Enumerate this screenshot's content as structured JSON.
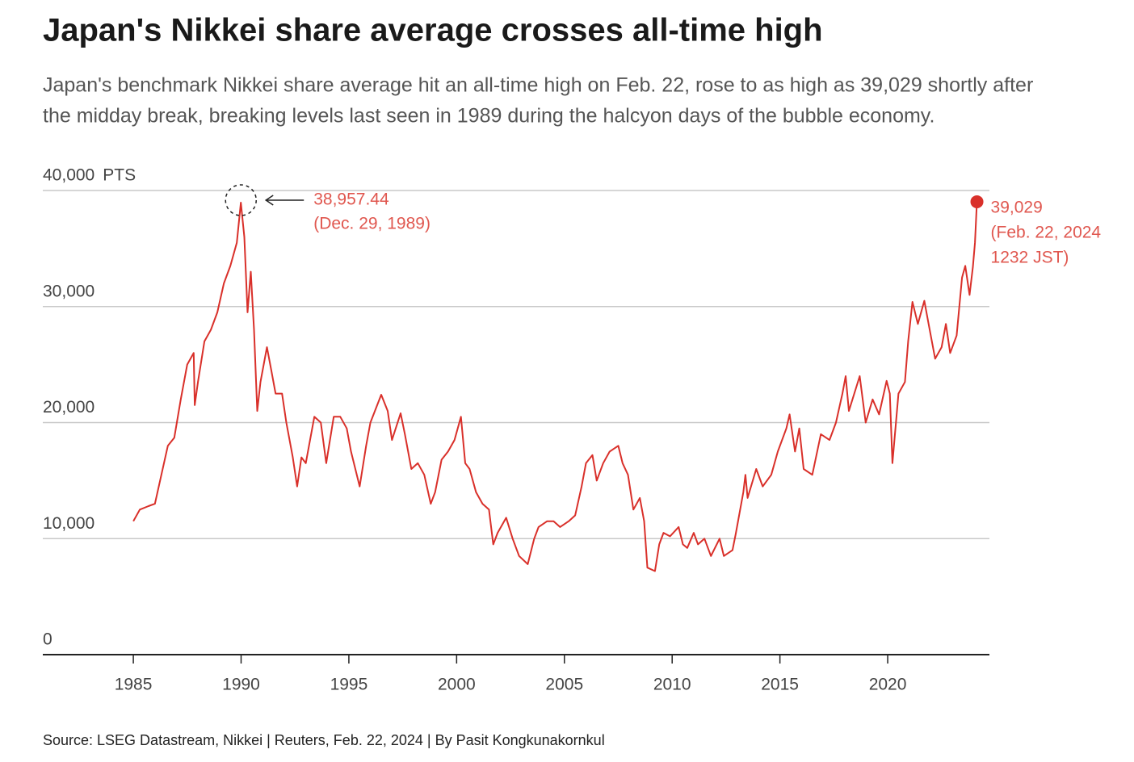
{
  "chart_data": {
    "type": "line",
    "title": "Japan's Nikkei share average crosses all-time high",
    "subtitle": [
      "Japan's benchmark Nikkei share average hit an all-time high on Feb. 22, rose to as high as 39,029 shortly after",
      "the midday break, breaking levels last seen in 1989 during the halcyon days of the bubble economy."
    ],
    "y_unit": "PTS",
    "source": "Source: LSEG Datastream, Nikkei | Reuters, Feb. 22, 2024 | By Pasit Kongkunakornkul",
    "xlim": [
      1980.8,
      2024.72
    ],
    "ylim": [
      0,
      40000
    ],
    "xticks": [
      1985,
      1990,
      1995,
      2000,
      2005,
      2010,
      2015,
      2020
    ],
    "yticks": [
      0,
      {
        "value": 10000,
        "label": "10,000"
      },
      {
        "value": 20000,
        "label": "20,000"
      },
      {
        "value": 30000,
        "label": "30,000"
      },
      {
        "value": 40000,
        "label": "40,000"
      }
    ],
    "grid": true,
    "annotations": [
      {
        "lines": [
          "38,957.44",
          "(Dec. 29, 1989)"
        ]
      },
      {
        "lines": [
          "39,029",
          "(Feb. 22, 2024",
          "1232 JST)"
        ]
      }
    ],
    "series": [
      {
        "name": "Nikkei",
        "color": "#d9302a",
        "x": [
          1985.0,
          1985.3,
          1985.7,
          1986.0,
          1986.3,
          1986.6,
          1986.9,
          1987.2,
          1987.5,
          1987.8,
          1987.85,
          1988.0,
          1988.3,
          1988.6,
          1988.9,
          1989.2,
          1989.5,
          1989.8,
          1989.99,
          1990.15,
          1990.3,
          1990.45,
          1990.6,
          1990.75,
          1990.9,
          1991.2,
          1991.4,
          1991.6,
          1991.9,
          1992.1,
          1992.4,
          1992.6,
          1992.8,
          1993.0,
          1993.4,
          1993.7,
          1993.95,
          1994.3,
          1994.6,
          1994.9,
          1995.1,
          1995.5,
          1995.8,
          1996.0,
          1996.5,
          1996.8,
          1997.0,
          1997.4,
          1997.6,
          1997.9,
          1998.2,
          1998.5,
          1998.8,
          1999.0,
          1999.3,
          1999.6,
          1999.9,
          2000.2,
          2000.4,
          2000.6,
          2000.9,
          2001.2,
          2001.5,
          2001.7,
          2001.9,
          2002.3,
          2002.6,
          2002.9,
          2003.3,
          2003.6,
          2003.8,
          2004.2,
          2004.5,
          2004.8,
          2005.2,
          2005.5,
          2005.8,
          2006.0,
          2006.3,
          2006.5,
          2006.8,
          2007.1,
          2007.5,
          2007.7,
          2007.95,
          2008.2,
          2008.5,
          2008.7,
          2008.85,
          2009.2,
          2009.4,
          2009.6,
          2009.9,
          2010.3,
          2010.5,
          2010.7,
          2011.0,
          2011.2,
          2011.5,
          2011.8,
          2012.2,
          2012.4,
          2012.8,
          2012.95,
          2013.3,
          2013.4,
          2013.5,
          2013.9,
          2014.2,
          2014.6,
          2014.9,
          2015.3,
          2015.45,
          2015.7,
          2015.9,
          2016.1,
          2016.5,
          2016.9,
          2017.3,
          2017.6,
          2017.9,
          2018.05,
          2018.2,
          2018.7,
          2018.98,
          2019.3,
          2019.6,
          2019.95,
          2020.1,
          2020.22,
          2020.5,
          2020.8,
          2020.95,
          2021.15,
          2021.4,
          2021.7,
          2021.9,
          2022.2,
          2022.5,
          2022.7,
          2022.9,
          2023.2,
          2023.45,
          2023.6,
          2023.8,
          2023.95,
          2024.05,
          2024.14
        ],
        "values": [
          11500,
          12500,
          12800,
          13000,
          15500,
          18000,
          18700,
          22000,
          25000,
          26000,
          21500,
          23500,
          27000,
          28000,
          29500,
          32000,
          33500,
          35500,
          38957.44,
          36000,
          29500,
          33000,
          28000,
          21000,
          23500,
          26500,
          24500,
          22500,
          22500,
          20000,
          17000,
          14500,
          17000,
          16500,
          20500,
          20000,
          16500,
          20500,
          20500,
          19500,
          17500,
          14500,
          18000,
          20000,
          22400,
          21000,
          18500,
          20800,
          19000,
          16000,
          16500,
          15500,
          13000,
          14000,
          16800,
          17500,
          18500,
          20500,
          16500,
          16000,
          14000,
          13000,
          12500,
          9500,
          10500,
          11800,
          10000,
          8500,
          7800,
          10000,
          11000,
          11500,
          11500,
          11000,
          11500,
          12000,
          14500,
          16500,
          17200,
          15000,
          16500,
          17500,
          18000,
          16500,
          15500,
          12500,
          13500,
          11500,
          7500,
          7200,
          9500,
          10500,
          10200,
          11000,
          9500,
          9200,
          10500,
          9500,
          10000,
          8500,
          10000,
          8500,
          9000,
          10400,
          14000,
          15500,
          13500,
          16000,
          14500,
          15500,
          17500,
          19500,
          20700,
          17500,
          19500,
          16000,
          15500,
          19000,
          18500,
          20000,
          22500,
          24000,
          21000,
          24000,
          20000,
          22000,
          20700,
          23600,
          22500,
          16500,
          22500,
          23500,
          27000,
          30400,
          28500,
          30500,
          28500,
          25500,
          26500,
          28500,
          26000,
          27500,
          32500,
          33500,
          31000,
          33400,
          35500,
          39029
        ]
      }
    ]
  }
}
